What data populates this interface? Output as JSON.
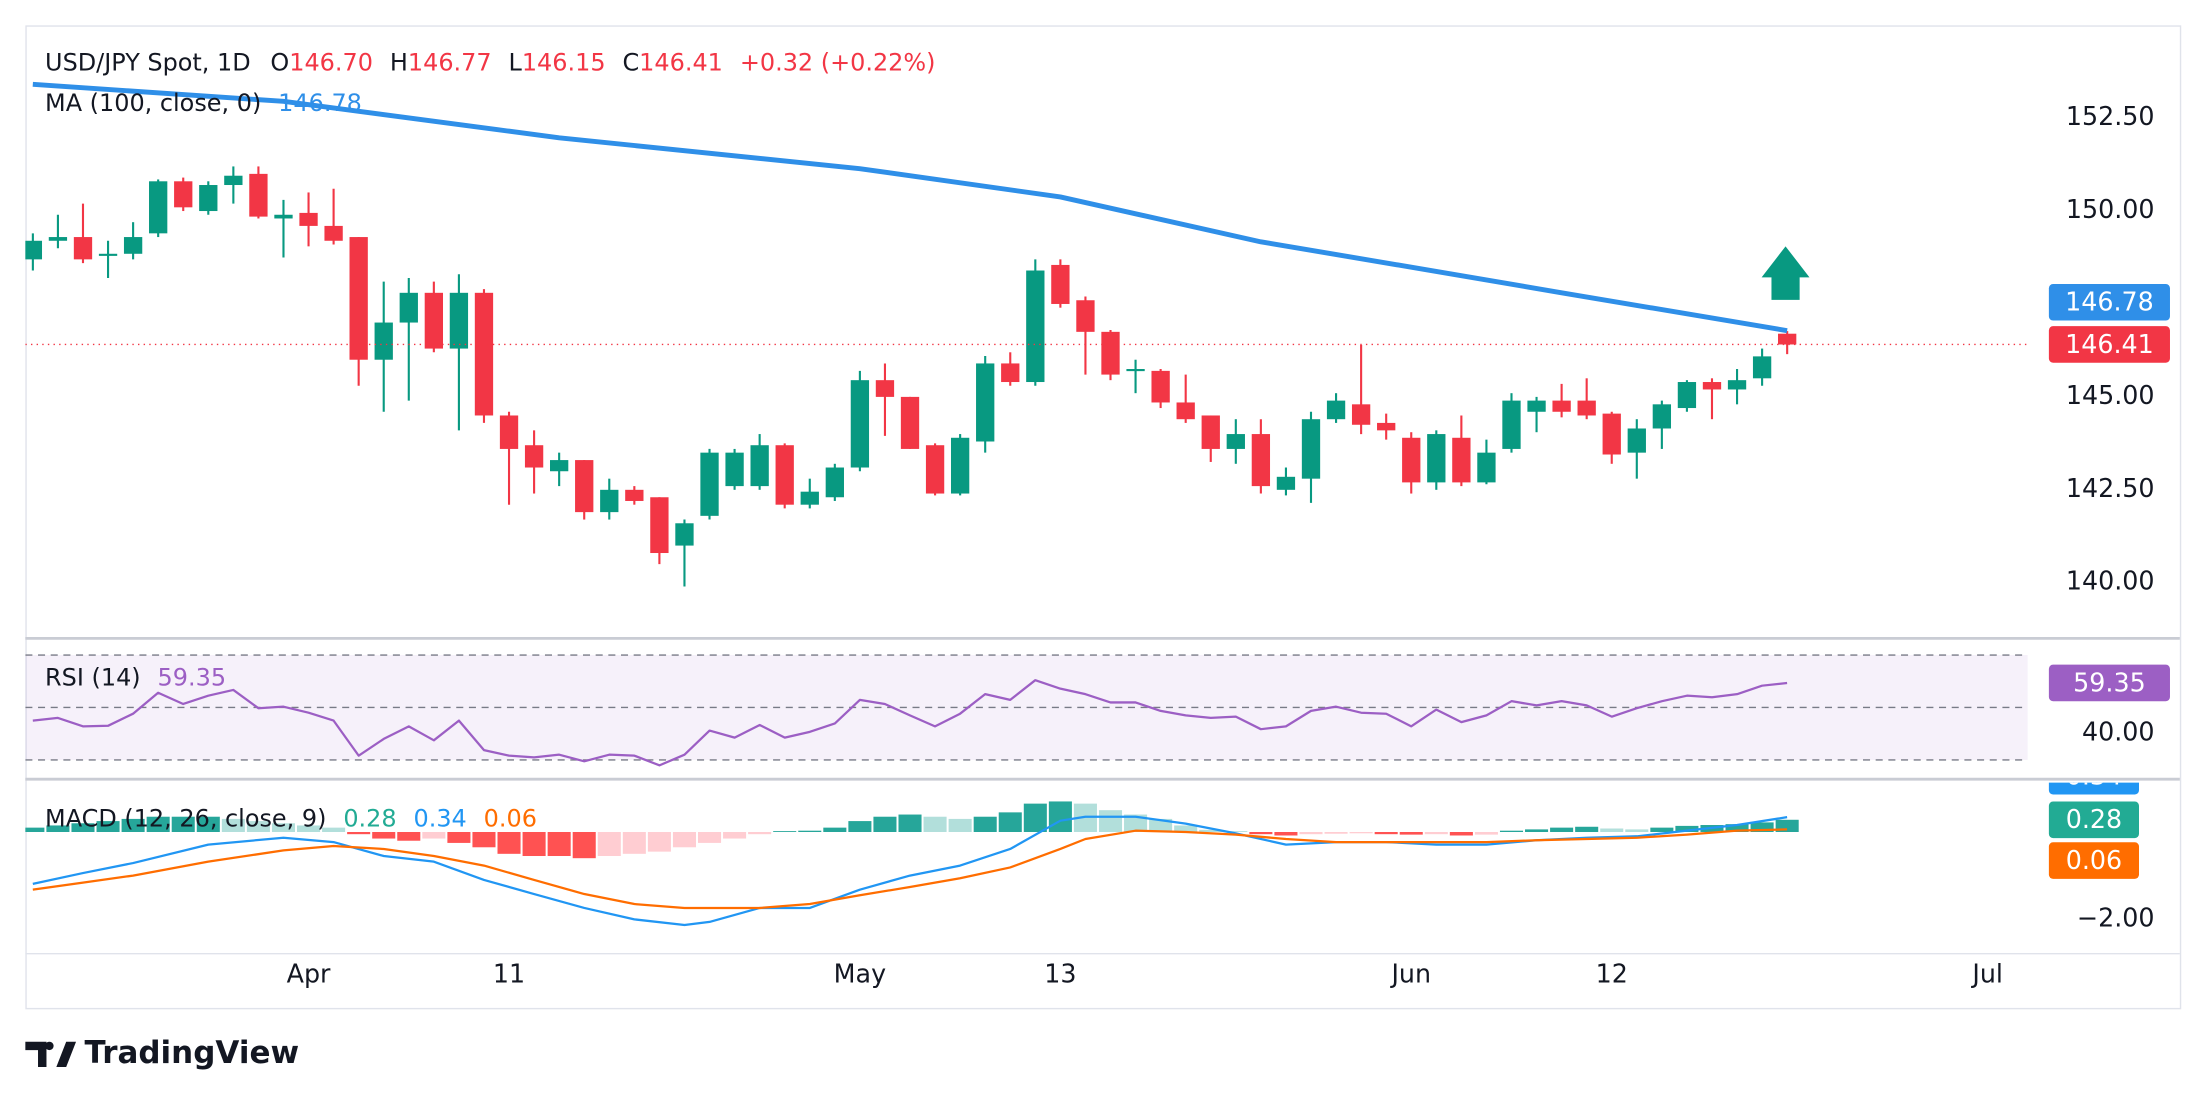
{
  "branding": "TradingView",
  "chart_data": [
    {
      "type": "candlestick",
      "legend": {
        "title": "USD/JPY Spot, 1D",
        "fields": [
          {
            "key": "O",
            "label": "146.70"
          },
          {
            "key": "H",
            "label": "146.77"
          },
          {
            "key": "L",
            "label": "146.15"
          },
          {
            "key": "C",
            "label": "146.41"
          }
        ],
        "change": "+0.32 (+0.22%)"
      },
      "open": [
        148.7,
        149.2,
        149.3,
        148.8,
        148.85,
        149.4,
        150.8,
        150.0,
        150.7,
        151.0,
        149.8,
        149.95,
        149.6,
        149.3,
        146.0,
        147.0,
        147.8,
        146.3,
        147.8,
        144.5,
        143.7,
        143.0,
        143.3,
        141.9,
        142.5,
        142.3,
        141.0,
        141.8,
        142.6,
        142.6,
        143.7,
        142.1,
        142.3,
        143.1,
        145.45,
        145.0,
        143.7,
        142.4,
        143.8,
        145.9,
        145.4,
        148.55,
        147.6,
        146.75,
        145.7,
        145.7,
        144.85,
        144.5,
        143.6,
        144.0,
        142.5,
        142.8,
        144.4,
        144.8,
        144.3,
        143.9,
        142.7,
        143.9,
        142.7,
        143.6,
        144.6,
        144.9,
        144.9,
        144.55,
        143.5,
        144.15,
        144.7,
        145.4,
        145.2,
        145.5,
        146.7
      ],
      "high": [
        149.4,
        149.9,
        150.2,
        149.2,
        149.7,
        150.85,
        150.9,
        150.8,
        151.2,
        151.2,
        150.3,
        150.5,
        150.6,
        149.3,
        148.1,
        148.2,
        148.1,
        148.3,
        147.9,
        144.6,
        144.1,
        143.5,
        143.3,
        142.8,
        142.6,
        142.3,
        141.7,
        143.6,
        143.6,
        144.0,
        143.75,
        142.8,
        143.2,
        145.7,
        145.9,
        145.0,
        143.75,
        144.0,
        146.1,
        146.2,
        148.7,
        148.7,
        147.7,
        146.8,
        146.0,
        145.75,
        145.6,
        144.5,
        144.4,
        144.4,
        143.1,
        144.6,
        145.1,
        146.4,
        144.55,
        144.05,
        144.1,
        144.5,
        143.85,
        145.1,
        145.0,
        145.35,
        145.5,
        144.6,
        144.4,
        144.9,
        145.45,
        145.5,
        145.75,
        146.3,
        146.77
      ],
      "low": [
        148.4,
        149.0,
        148.6,
        148.2,
        148.7,
        149.3,
        150.0,
        149.9,
        150.2,
        149.8,
        148.75,
        149.05,
        149.1,
        145.3,
        144.6,
        144.9,
        146.2,
        144.1,
        144.3,
        142.1,
        142.4,
        142.6,
        141.7,
        141.7,
        142.1,
        140.5,
        139.9,
        141.7,
        142.5,
        142.5,
        142.0,
        142.0,
        142.2,
        143.0,
        143.95,
        143.6,
        142.35,
        142.35,
        143.5,
        145.3,
        145.3,
        147.4,
        145.6,
        145.45,
        145.1,
        144.7,
        144.3,
        143.25,
        143.2,
        142.4,
        142.35,
        142.15,
        144.3,
        144.0,
        143.85,
        142.4,
        142.5,
        142.6,
        142.65,
        143.5,
        144.05,
        144.45,
        144.4,
        143.2,
        142.8,
        143.6,
        144.6,
        144.4,
        144.8,
        145.3,
        146.15
      ],
      "close": [
        149.2,
        149.3,
        148.7,
        148.85,
        149.3,
        150.8,
        150.1,
        150.7,
        150.95,
        149.85,
        149.9,
        149.6,
        149.2,
        146.0,
        147.0,
        147.8,
        146.3,
        147.8,
        144.5,
        143.6,
        143.1,
        143.3,
        141.9,
        142.5,
        142.2,
        140.8,
        141.6,
        143.5,
        143.5,
        143.7,
        142.1,
        142.45,
        143.1,
        145.45,
        145.0,
        143.6,
        142.4,
        143.9,
        145.9,
        145.4,
        148.4,
        147.5,
        146.75,
        145.6,
        145.75,
        144.85,
        144.4,
        143.6,
        144.0,
        142.6,
        142.85,
        144.4,
        144.9,
        144.25,
        144.1,
        142.7,
        144.0,
        142.7,
        143.5,
        144.9,
        144.9,
        144.6,
        144.5,
        143.45,
        144.15,
        144.8,
        145.4,
        145.2,
        145.45,
        146.09,
        146.41
      ],
      "up_color": "#089981",
      "down_color": "#f23645",
      "xlim": [
        -0.3,
        79.6
      ],
      "ylim": [
        138.56,
        154.92
      ],
      "yticks": [
        {
          "value": 140,
          "label": "140.00"
        },
        {
          "value": 142.5,
          "label": "142.50"
        },
        {
          "value": 145,
          "label": "145.00"
        },
        {
          "value": 150,
          "label": "150.00"
        },
        {
          "value": 152.5,
          "label": "152.50"
        }
      ],
      "grid": true,
      "last_price_line": true,
      "overlays": [
        {
          "type": "line",
          "name": "MA (100, close, 0)",
          "color": "#2f8fe8",
          "x": [
            0,
            10,
            21,
            33,
            41,
            49,
            55,
            61,
            70
          ],
          "values": [
            153.41,
            152.95,
            151.97,
            151.14,
            150.38,
            149.17,
            148.49,
            147.8,
            146.78
          ]
        }
      ]
    },
    {
      "type": "line",
      "title": "RSI (14)",
      "color": "#9c5fc4",
      "values": [
        45,
        46,
        42.8,
        43,
        47.6,
        55.6,
        51.3,
        54.5,
        56.7,
        49.7,
        50.3,
        48,
        45,
        31.6,
        38,
        42.8,
        37.5,
        45,
        33.7,
        31.6,
        31,
        32,
        29.5,
        32,
        31.6,
        27.9,
        32,
        41.2,
        38.5,
        43.3,
        38.5,
        40.7,
        43.9,
        52.9,
        51.3,
        47,
        42.8,
        47.6,
        55.1,
        52.9,
        60.4,
        57.2,
        55.1,
        51.9,
        51.9,
        48.7,
        47,
        46,
        46.5,
        41.7,
        42.8,
        48.7,
        50.3,
        48,
        47.6,
        42.8,
        49.2,
        44.4,
        47,
        52.4,
        50.8,
        52.4,
        50.8,
        46.5,
        49.7,
        52.4,
        54.5,
        53.9,
        55.1,
        58.3,
        59.35
      ],
      "xlim": [
        -0.3,
        79.6
      ],
      "ylim": [
        24,
        75
      ],
      "yticks": [
        {
          "value": 40,
          "label": "40.00"
        }
      ],
      "levels": [
        70,
        50,
        30
      ]
    },
    {
      "type": "macd",
      "title": "MACD (12, 26, close, 9)",
      "xlim": [
        -0.3,
        79.6
      ],
      "ylim": [
        -2.74,
        1.13
      ],
      "yticks": [
        {
          "value": -2,
          "label": "−2.00"
        }
      ],
      "xticks": [
        {
          "value": 11,
          "label": "Apr"
        },
        {
          "value": 19,
          "label": "11"
        },
        {
          "value": 33,
          "label": "May"
        },
        {
          "value": 41,
          "label": "13"
        },
        {
          "value": 55,
          "label": "Jun"
        },
        {
          "value": 63,
          "label": "12"
        },
        {
          "value": 78,
          "label": "Jul"
        }
      ],
      "histogram": {
        "colors": [
          "#26a69a",
          "#b2dfdb",
          "#ff5252",
          "#ffcdd2"
        ],
        "legend_color": "#22ab94",
        "values": [
          0.1,
          0.15,
          0.2,
          0.25,
          0.3,
          0.35,
          0.35,
          0.35,
          0.3,
          0.25,
          0.2,
          0.15,
          0.1,
          -0.05,
          -0.15,
          -0.2,
          -0.15,
          -0.25,
          -0.35,
          -0.5,
          -0.55,
          -0.55,
          -0.6,
          -0.55,
          -0.5,
          -0.45,
          -0.35,
          -0.25,
          -0.15,
          -0.05,
          0.02,
          0.03,
          0.1,
          0.25,
          0.35,
          0.4,
          0.35,
          0.3,
          0.35,
          0.45,
          0.65,
          0.7,
          0.65,
          0.5,
          0.4,
          0.3,
          0.15,
          0.05,
          0.02,
          -0.05,
          -0.08,
          -0.05,
          -0.04,
          -0.03,
          -0.05,
          -0.06,
          -0.05,
          -0.08,
          -0.06,
          0.03,
          0.06,
          0.1,
          0.12,
          0.08,
          0.06,
          0.1,
          0.14,
          0.16,
          0.18,
          0.22,
          0.28
        ]
      },
      "macd": {
        "color": "#2196f3",
        "x": [
          0,
          2,
          4,
          7,
          10,
          12,
          14,
          16,
          18,
          20,
          22,
          24,
          26,
          27,
          29,
          31,
          33,
          35,
          37,
          39,
          41,
          42,
          44,
          46,
          48,
          50,
          52,
          54,
          56,
          58,
          60,
          62,
          64,
          66,
          68,
          70
        ],
        "values": [
          -1.19,
          -0.94,
          -0.71,
          -0.29,
          -0.13,
          -0.23,
          -0.55,
          -0.68,
          -1.1,
          -1.42,
          -1.74,
          -2.0,
          -2.13,
          -2.06,
          -1.74,
          -1.74,
          -1.32,
          -1.0,
          -0.77,
          -0.39,
          0.26,
          0.35,
          0.35,
          0.19,
          -0.03,
          -0.29,
          -0.23,
          -0.23,
          -0.29,
          -0.29,
          -0.19,
          -0.13,
          -0.1,
          0.03,
          0.16,
          0.34
        ]
      },
      "signal": {
        "color": "#ff6d00",
        "x": [
          0,
          2,
          4,
          7,
          10,
          12,
          14,
          16,
          18,
          20,
          22,
          24,
          26,
          27,
          29,
          31,
          33,
          35,
          37,
          39,
          41,
          42,
          44,
          46,
          48,
          50,
          52,
          54,
          56,
          58,
          60,
          62,
          64,
          66,
          68,
          70
        ],
        "values": [
          -1.32,
          -1.16,
          -1.0,
          -0.68,
          -0.42,
          -0.32,
          -0.39,
          -0.55,
          -0.77,
          -1.1,
          -1.42,
          -1.65,
          -1.74,
          -1.74,
          -1.74,
          -1.65,
          -1.45,
          -1.26,
          -1.06,
          -0.81,
          -0.39,
          -0.16,
          0.03,
          0,
          -0.06,
          -0.16,
          -0.23,
          -0.23,
          -0.23,
          -0.23,
          -0.19,
          -0.16,
          -0.13,
          -0.06,
          0.03,
          0.06
        ]
      }
    }
  ]
}
